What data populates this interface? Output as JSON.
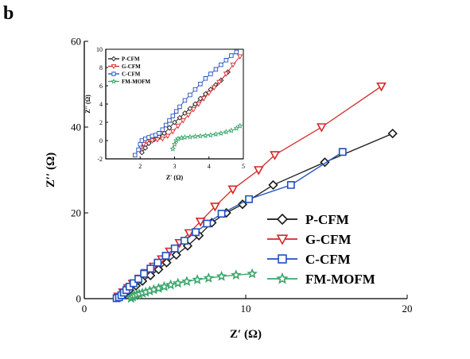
{
  "panel_label": "b",
  "chart_data": [
    {
      "id": "main",
      "type": "scatter",
      "title": "",
      "xlabel": "Z′ (Ω)",
      "ylabel": "Z′′ (Ω)",
      "xlim": [
        0,
        20
      ],
      "ylim": [
        0,
        60
      ],
      "xticks": [
        0,
        10,
        20
      ],
      "yticks": [
        0,
        20,
        40,
        60
      ],
      "legend_position": "lower-right",
      "series": [
        {
          "name": "P-CFM",
          "marker": "diamond",
          "color": "#1a1a1a",
          "x": [
            2.2,
            2.5,
            2.8,
            3.2,
            3.6,
            4.1,
            4.6,
            5.1,
            5.7,
            6.4,
            7.1,
            7.9,
            8.8,
            9.8,
            11.7,
            14.9,
            19.1
          ],
          "y": [
            0.3,
            1.0,
            2.0,
            3.0,
            4.1,
            5.4,
            6.8,
            8.4,
            10.2,
            12.3,
            14.7,
            17.7,
            20.0,
            22.0,
            26.5,
            31.8,
            38.5
          ]
        },
        {
          "name": "G-CFM",
          "marker": "triangle-down",
          "color": "#d62728",
          "x": [
            2.1,
            2.4,
            2.7,
            3.0,
            3.4,
            3.8,
            4.3,
            4.8,
            5.3,
            5.9,
            6.5,
            7.2,
            8.1,
            9.2,
            10.8,
            11.8,
            14.7,
            18.4
          ],
          "y": [
            0.5,
            1.5,
            2.5,
            3.5,
            4.7,
            6.0,
            7.5,
            9.2,
            11.0,
            13.0,
            15.3,
            18.0,
            21.5,
            25.5,
            30.0,
            33.5,
            40.0,
            49.5
          ]
        },
        {
          "name": "C-CFM",
          "marker": "square",
          "color": "#1f4fbf",
          "x": [
            2.0,
            2.15,
            2.3,
            2.45,
            2.6,
            2.8,
            3.05,
            3.35,
            3.7,
            4.1,
            4.55,
            5.05,
            5.6,
            6.2,
            6.9,
            7.6,
            8.5,
            10.2,
            12.8,
            16.0
          ],
          "y": [
            0.1,
            0.3,
            0.8,
            1.4,
            2.0,
            2.8,
            3.6,
            4.6,
            5.8,
            7.0,
            8.4,
            10.0,
            11.7,
            13.5,
            15.5,
            17.5,
            19.8,
            23.2,
            26.5,
            34.2
          ]
        },
        {
          "name": "FM-MOFM",
          "marker": "star",
          "color": "#3aa66b",
          "x": [
            2.9,
            3.0,
            3.1,
            3.25,
            3.4,
            3.6,
            3.8,
            4.05,
            4.3,
            4.6,
            4.95,
            5.35,
            5.8,
            6.35,
            7.0,
            7.7,
            8.5,
            9.4,
            10.4
          ],
          "y": [
            0.1,
            0.4,
            0.7,
            0.9,
            1.1,
            1.3,
            1.5,
            1.8,
            2.1,
            2.4,
            2.8,
            3.2,
            3.6,
            4.0,
            4.4,
            4.8,
            5.2,
            5.5,
            5.8
          ]
        }
      ]
    },
    {
      "id": "inset",
      "type": "scatter",
      "title": "",
      "xlabel": "Z′ (Ω)",
      "ylabel": "Z′′ (Ω)",
      "xlim": [
        1,
        5
      ],
      "ylim": [
        -2,
        10
      ],
      "xticks": [
        2,
        3,
        4,
        5
      ],
      "yticks": [
        -2,
        0,
        2,
        4,
        6,
        8,
        10
      ],
      "legend_position": "top-left",
      "series": [
        {
          "name": "P-CFM",
          "marker": "diamond",
          "color": "#1a1a1a",
          "x": [
            2.05,
            2.15,
            2.25,
            2.4,
            2.55,
            2.7,
            2.85,
            3.0,
            3.15,
            3.3,
            3.45,
            3.6,
            3.75,
            3.9,
            4.05,
            4.2,
            4.35,
            4.55
          ],
          "y": [
            -1.3,
            -0.8,
            -0.3,
            0.1,
            0.4,
            0.8,
            1.4,
            2.0,
            2.5,
            3.0,
            3.5,
            4.0,
            4.6,
            5.1,
            5.6,
            6.1,
            6.6,
            7.5
          ]
        },
        {
          "name": "G-CFM",
          "marker": "triangle-down",
          "color": "#d62728",
          "x": [
            2.0,
            2.1,
            2.2,
            2.35,
            2.5,
            2.65,
            2.8,
            2.95,
            3.1,
            3.25,
            3.4,
            3.55,
            3.7,
            3.85,
            4.0,
            4.15,
            4.3,
            4.5,
            4.7,
            4.9
          ],
          "y": [
            -1.1,
            -0.4,
            -0.1,
            0.0,
            0.1,
            0.2,
            0.5,
            1.0,
            1.6,
            2.2,
            2.8,
            3.4,
            4.0,
            4.6,
            5.2,
            5.8,
            6.4,
            7.3,
            8.3,
            9.2
          ]
        },
        {
          "name": "C-CFM",
          "marker": "square",
          "color": "#1f4fbf",
          "x": [
            1.85,
            1.95,
            2.0,
            2.05,
            2.15,
            2.25,
            2.35,
            2.45,
            2.55,
            2.65,
            2.75,
            2.85,
            2.95,
            3.05,
            3.15,
            3.3,
            3.45,
            3.6,
            3.75,
            3.9,
            4.05,
            4.2,
            4.35,
            4.5,
            4.65,
            4.8
          ],
          "y": [
            -1.6,
            -1.0,
            -0.4,
            0.0,
            0.2,
            0.35,
            0.5,
            0.6,
            0.8,
            1.2,
            1.7,
            2.2,
            2.7,
            3.2,
            3.7,
            4.4,
            5.0,
            5.6,
            6.2,
            6.8,
            7.3,
            7.8,
            8.3,
            8.8,
            9.3,
            9.7
          ]
        },
        {
          "name": "FM-MOFM",
          "marker": "star",
          "color": "#3aa66b",
          "x": [
            2.95,
            3.0,
            3.05,
            3.1,
            3.2,
            3.3,
            3.45,
            3.6,
            3.75,
            3.9,
            4.05,
            4.2,
            4.35,
            4.5,
            4.65,
            4.8,
            4.9
          ],
          "y": [
            -0.9,
            -0.4,
            0.0,
            0.2,
            0.3,
            0.35,
            0.4,
            0.45,
            0.5,
            0.55,
            0.6,
            0.7,
            0.8,
            0.95,
            1.1,
            1.35,
            1.6
          ]
        }
      ]
    }
  ]
}
